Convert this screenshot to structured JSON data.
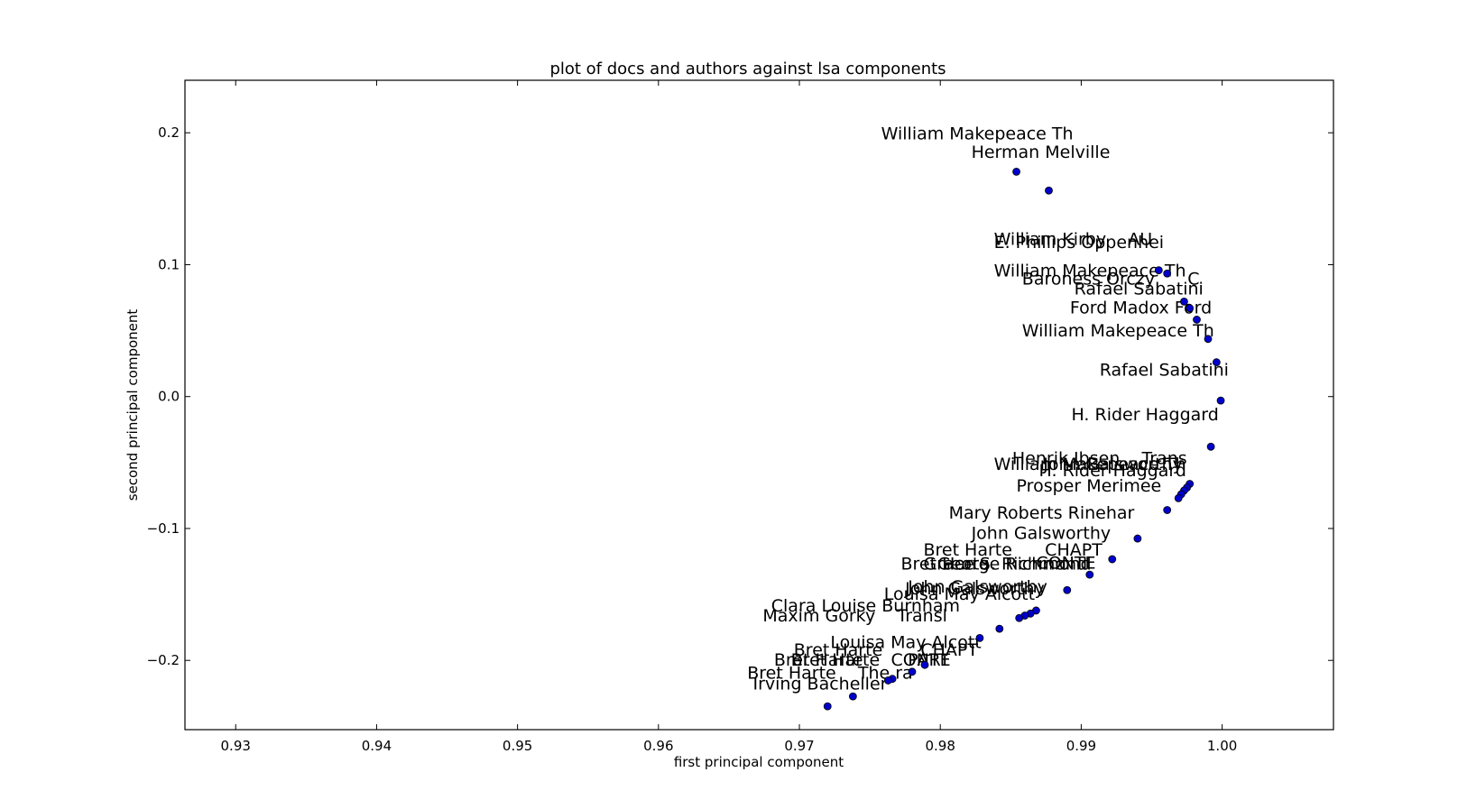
{
  "chart_data": {
    "type": "scatter",
    "title": "plot of docs and authors against lsa components",
    "xlabel": "first principal component",
    "ylabel": "second principal component",
    "xlim": [
      0.9264,
      1.0079
    ],
    "ylim": [
      -0.2525,
      0.2398
    ],
    "xticks": [
      0.93,
      0.94,
      0.95,
      0.96,
      0.97,
      0.98,
      0.99,
      1.0
    ],
    "xtick_labels": [
      "0.93",
      "0.94",
      "0.95",
      "0.96",
      "0.97",
      "0.98",
      "0.99",
      "1.00"
    ],
    "yticks": [
      0.2,
      0.1,
      0.0,
      -0.1,
      -0.2
    ],
    "ytick_labels": [
      "0.2",
      "0.1",
      "0.0",
      "−0.1",
      "−0.2"
    ],
    "grid": false,
    "marker_color": "#0000cc",
    "points": [
      {
        "x": 0.9854,
        "y": 0.1705
      },
      {
        "x": 0.9877,
        "y": 0.1562
      },
      {
        "x": 0.9955,
        "y": 0.0958
      },
      {
        "x": 0.9961,
        "y": 0.0933
      },
      {
        "x": 0.9973,
        "y": 0.072
      },
      {
        "x": 0.9977,
        "y": 0.067
      },
      {
        "x": 0.9982,
        "y": 0.0583
      },
      {
        "x": 0.999,
        "y": 0.0437
      },
      {
        "x": 0.9996,
        "y": 0.026
      },
      {
        "x": 0.9999,
        "y": -0.003
      },
      {
        "x": 0.9992,
        "y": -0.038
      },
      {
        "x": 0.9977,
        "y": -0.0662
      },
      {
        "x": 0.9975,
        "y": -0.069
      },
      {
        "x": 0.9973,
        "y": -0.0712
      },
      {
        "x": 0.9971,
        "y": -0.074
      },
      {
        "x": 0.9969,
        "y": -0.077
      },
      {
        "x": 0.9961,
        "y": -0.086
      },
      {
        "x": 0.994,
        "y": -0.1076
      },
      {
        "x": 0.9922,
        "y": -0.1233
      },
      {
        "x": 0.9906,
        "y": -0.135
      },
      {
        "x": 0.989,
        "y": -0.1467
      },
      {
        "x": 0.9868,
        "y": -0.1622
      },
      {
        "x": 0.9864,
        "y": -0.1645
      },
      {
        "x": 0.986,
        "y": -0.166
      },
      {
        "x": 0.9856,
        "y": -0.1679
      },
      {
        "x": 0.9842,
        "y": -0.176
      },
      {
        "x": 0.9828,
        "y": -0.183
      },
      {
        "x": 0.9789,
        "y": -0.2034
      },
      {
        "x": 0.978,
        "y": -0.2086
      },
      {
        "x": 0.9766,
        "y": -0.214
      },
      {
        "x": 0.9763,
        "y": -0.2152
      },
      {
        "x": 0.9738,
        "y": -0.2273
      },
      {
        "x": 0.972,
        "y": -0.2348
      }
    ],
    "annotations": [
      {
        "text": "William Makepeace Th",
        "x": 0.9758,
        "y": 0.195
      },
      {
        "text": "Herman Melville",
        "x": 0.9822,
        "y": 0.181
      },
      {
        "text": "William Kirby    AU",
        "x": 0.9838,
        "y": 0.115
      },
      {
        "text": "E. Phillips Oppenhei",
        "x": 0.9838,
        "y": 0.1125
      },
      {
        "text": "William Makepeace Th",
        "x": 0.9838,
        "y": 0.091
      },
      {
        "text": "Baroness Orczy      C",
        "x": 0.9858,
        "y": 0.085
      },
      {
        "text": "Rafael Sabatini",
        "x": 0.9895,
        "y": 0.0773
      },
      {
        "text": "Ford Madox Ford",
        "x": 0.9892,
        "y": 0.063
      },
      {
        "text": "William Makepeace Th",
        "x": 0.9858,
        "y": 0.0455
      },
      {
        "text": "Rafael Sabatini",
        "x": 0.9913,
        "y": 0.016
      },
      {
        "text": "H. Rider Haggard",
        "x": 0.9893,
        "y": -0.018
      },
      {
        "text": "Henrik Ibsen    Trans",
        "x": 0.9851,
        "y": -0.051
      },
      {
        "text": "William Makepeace Th",
        "x": 0.9838,
        "y": -0.0555
      },
      {
        "text": "John Galsworthy",
        "x": 0.9873,
        "y": -0.0555
      },
      {
        "text": "H. Rider Haggard",
        "x": 0.987,
        "y": -0.0605
      },
      {
        "text": "Prosper Merimee",
        "x": 0.9854,
        "y": -0.072
      },
      {
        "text": "Mary Roberts Rinehar",
        "x": 0.9806,
        "y": -0.0925
      },
      {
        "text": "John Galsworthy",
        "x": 0.9822,
        "y": -0.108
      },
      {
        "text": "Bret Harte      CHAPT",
        "x": 0.9788,
        "y": -0.1205
      },
      {
        "text": "Bret Harte",
        "x": 0.9772,
        "y": -0.1313
      },
      {
        "text": "George Richmond",
        "x": 0.9798,
        "y": -0.1313
      },
      {
        "text": "Grace S. Richmond",
        "x": 0.9788,
        "y": -0.1313
      },
      {
        "text": "CONTE",
        "x": 0.9868,
        "y": -0.1305
      },
      {
        "text": "John Galsworthy",
        "x": 0.9775,
        "y": -0.15
      },
      {
        "text": "John Galsworthy",
        "x": 0.9777,
        "y": -0.1485
      },
      {
        "text": "Louisa May Alcott",
        "x": 0.976,
        "y": -0.154
      },
      {
        "text": "Clara Louise Burnham",
        "x": 0.968,
        "y": -0.163
      },
      {
        "text": "Maxim Gorky    Transl",
        "x": 0.9674,
        "y": -0.1705
      },
      {
        "text": "Louisa May Alcott",
        "x": 0.9722,
        "y": -0.1905
      },
      {
        "text": "Bret Harte",
        "x": 0.9696,
        "y": -0.1965
      },
      {
        "text": "CHAPT",
        "x": 0.9786,
        "y": -0.1965
      },
      {
        "text": "Bret Harte",
        "x": 0.9682,
        "y": -0.204
      },
      {
        "text": "CONTE",
        "x": 0.9765,
        "y": -0.204
      },
      {
        "text": "Bret Harte",
        "x": 0.9694,
        "y": -0.204
      },
      {
        "text": "PART",
        "x": 0.9777,
        "y": -0.204
      },
      {
        "text": "Bret Harte    The ra",
        "x": 0.9663,
        "y": -0.214
      },
      {
        "text": "Irving Bacheller",
        "x": 0.9667,
        "y": -0.222
      }
    ]
  }
}
